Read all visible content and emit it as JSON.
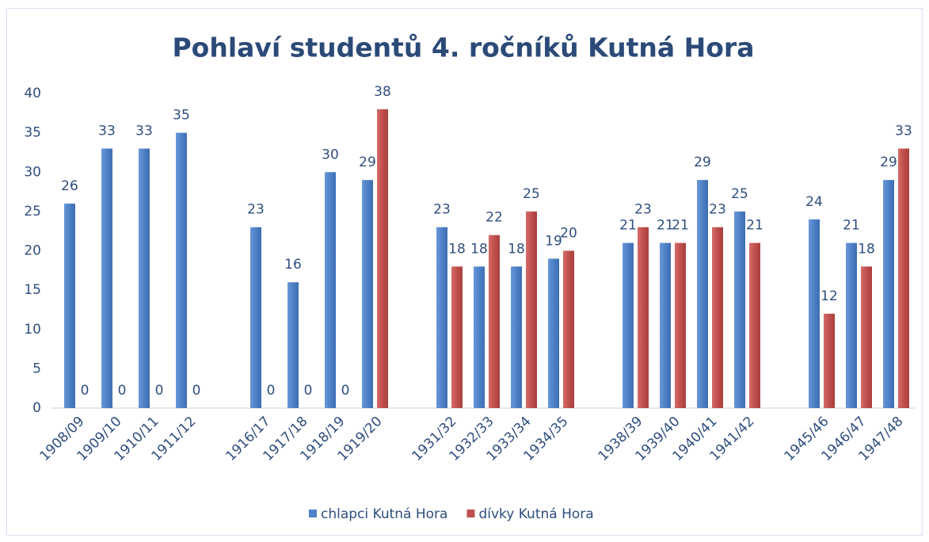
{
  "chart_data": {
    "type": "bar",
    "title": "Pohlaví studentů 4. ročníků Kutná Hora",
    "categories": [
      "1908/09",
      "1909/10",
      "1910/11",
      "1911/12",
      null,
      "1916/17",
      "1917/18",
      "1918/19",
      "1919/20",
      null,
      "1931/32",
      "1932/33",
      "1933/34",
      "1934/35",
      null,
      "1938/39",
      "1939/40",
      "1940/41",
      "1941/42",
      null,
      "1945/46",
      "1946/47",
      "1947/48"
    ],
    "series": [
      {
        "name": "chlapci Kutná Hora",
        "color": "#4f81c7",
        "values": [
          26,
          33,
          33,
          35,
          null,
          23,
          16,
          30,
          29,
          null,
          23,
          18,
          18,
          19,
          null,
          21,
          21,
          29,
          25,
          null,
          24,
          21,
          29
        ]
      },
      {
        "name": "dívky Kutná Hora",
        "color": "#c0504d",
        "values": [
          0,
          0,
          0,
          0,
          null,
          0,
          0,
          0,
          38,
          null,
          18,
          22,
          25,
          20,
          null,
          23,
          21,
          23,
          21,
          null,
          12,
          18,
          33
        ]
      }
    ],
    "ylim": [
      0,
      40
    ],
    "yticks": [
      0,
      5,
      10,
      15,
      20,
      25,
      30,
      35,
      40
    ],
    "grid": false,
    "legend": "bottom"
  }
}
